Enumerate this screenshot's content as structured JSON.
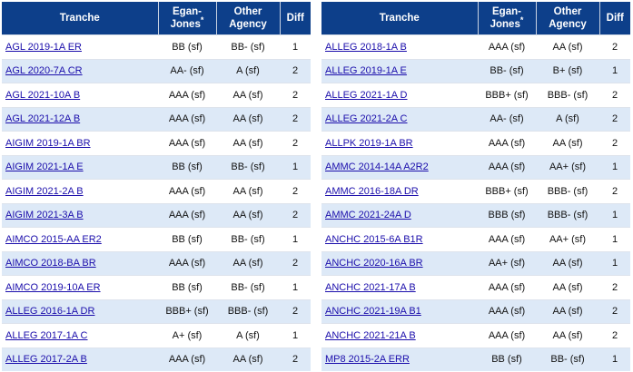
{
  "headers": {
    "tranche": "Tranche",
    "egan": "Egan-Jones",
    "egan_marker": "*",
    "other": "Other Agency",
    "diff": "Diff"
  },
  "left_rows": [
    {
      "tranche": "AGL 2019-1A ER",
      "egan": "BB (sf)",
      "other": "BB- (sf)",
      "diff": "1"
    },
    {
      "tranche": "AGL 2020-7A CR",
      "egan": "AA- (sf)",
      "other": "A (sf)",
      "diff": "2"
    },
    {
      "tranche": "AGL 2021-10A B",
      "egan": "AAA (sf)",
      "other": "AA (sf)",
      "diff": "2"
    },
    {
      "tranche": "AGL 2021-12A B",
      "egan": "AAA (sf)",
      "other": "AA (sf)",
      "diff": "2"
    },
    {
      "tranche": "AIGIM 2019-1A BR",
      "egan": "AAA (sf)",
      "other": "AA (sf)",
      "diff": "2"
    },
    {
      "tranche": "AIGIM 2021-1A E",
      "egan": "BB (sf)",
      "other": "BB- (sf)",
      "diff": "1"
    },
    {
      "tranche": "AIGIM 2021-2A B",
      "egan": "AAA (sf)",
      "other": "AA (sf)",
      "diff": "2"
    },
    {
      "tranche": "AIGIM 2021-3A B",
      "egan": "AAA (sf)",
      "other": "AA (sf)",
      "diff": "2"
    },
    {
      "tranche": "AIMCO 2015-AA ER2",
      "egan": "BB (sf)",
      "other": "BB- (sf)",
      "diff": "1"
    },
    {
      "tranche": "AIMCO 2018-BA BR",
      "egan": "AAA (sf)",
      "other": "AA (sf)",
      "diff": "2"
    },
    {
      "tranche": "AIMCO 2019-10A ER",
      "egan": "BB (sf)",
      "other": "BB- (sf)",
      "diff": "1"
    },
    {
      "tranche": "ALLEG 2016-1A DR",
      "egan": "BBB+ (sf)",
      "other": "BBB- (sf)",
      "diff": "2"
    },
    {
      "tranche": "ALLEG 2017-1A C",
      "egan": "A+ (sf)",
      "other": "A (sf)",
      "diff": "1"
    },
    {
      "tranche": "ALLEG 2017-2A B",
      "egan": "AAA (sf)",
      "other": "AA (sf)",
      "diff": "2"
    }
  ],
  "right_rows": [
    {
      "tranche": "ALLEG 2018-1A B",
      "egan": "AAA (sf)",
      "other": "AA (sf)",
      "diff": "2"
    },
    {
      "tranche": "ALLEG 2019-1A E",
      "egan": "BB- (sf)",
      "other": "B+ (sf)",
      "diff": "1"
    },
    {
      "tranche": "ALLEG 2021-1A D",
      "egan": "BBB+ (sf)",
      "other": "BBB- (sf)",
      "diff": "2"
    },
    {
      "tranche": "ALLEG 2021-2A C",
      "egan": "AA- (sf)",
      "other": "A (sf)",
      "diff": "2"
    },
    {
      "tranche": "ALLPK 2019-1A BR",
      "egan": "AAA (sf)",
      "other": "AA (sf)",
      "diff": "2"
    },
    {
      "tranche": "AMMC 2014-14A A2R2",
      "egan": "AAA (sf)",
      "other": "AA+ (sf)",
      "diff": "1"
    },
    {
      "tranche": "AMMC 2016-18A DR",
      "egan": "BBB+ (sf)",
      "other": "BBB- (sf)",
      "diff": "2"
    },
    {
      "tranche": "AMMC 2021-24A D",
      "egan": "BBB (sf)",
      "other": "BBB- (sf)",
      "diff": "1"
    },
    {
      "tranche": "ANCHC 2015-6A B1R",
      "egan": "AAA (sf)",
      "other": "AA+ (sf)",
      "diff": "1"
    },
    {
      "tranche": "ANCHC 2020-16A BR",
      "egan": "AA+ (sf)",
      "other": "AA (sf)",
      "diff": "1"
    },
    {
      "tranche": "ANCHC 2021-17A B",
      "egan": "AAA (sf)",
      "other": "AA (sf)",
      "diff": "2"
    },
    {
      "tranche": "ANCHC 2021-19A B1",
      "egan": "AAA (sf)",
      "other": "AA (sf)",
      "diff": "2"
    },
    {
      "tranche": "ANCHC 2021-21A B",
      "egan": "AAA (sf)",
      "other": "AA (sf)",
      "diff": "2"
    },
    {
      "tranche": "MP8 2015-2A ERR",
      "egan": "BB (sf)",
      "other": "BB- (sf)",
      "diff": "1"
    }
  ]
}
